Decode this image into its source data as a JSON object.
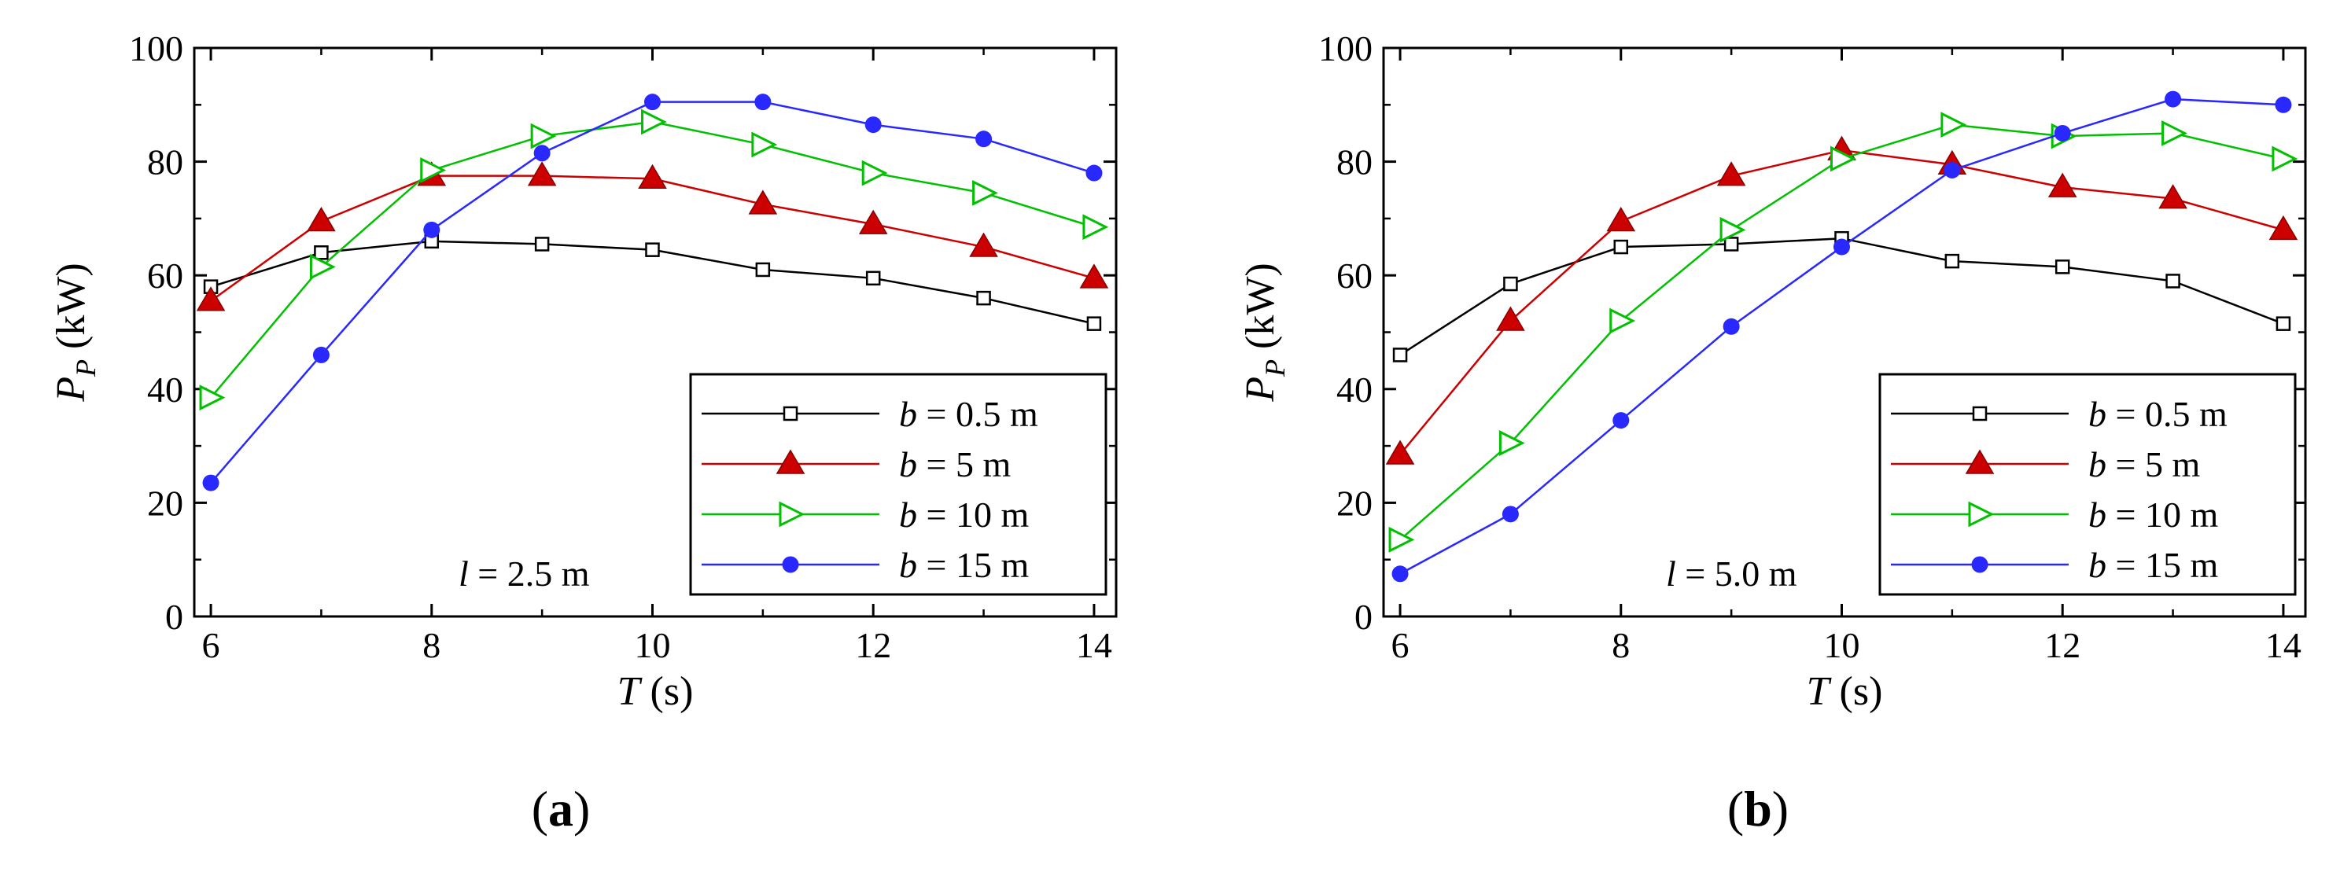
{
  "chart_data": [
    {
      "type": "line",
      "panel_label": "a",
      "annotation": {
        "symbol": "l",
        "text": " = 2.5 m"
      },
      "ylabel": {
        "main": "P",
        "sub": "P",
        "unit": " (kW)"
      },
      "xlabel": {
        "main": "T",
        "unit": " (s)"
      },
      "xlim": [
        5.85,
        14.2
      ],
      "ylim": [
        0,
        100
      ],
      "xticks": [
        6,
        8,
        10,
        12,
        14
      ],
      "xtick_labels": [
        "6",
        "8",
        "10",
        "12",
        "14"
      ],
      "yticks": [
        0,
        20,
        40,
        60,
        80,
        100
      ],
      "ytick_labels": [
        "0",
        "20",
        "40",
        "60",
        "80",
        "100"
      ],
      "legend_position": "lower-right",
      "x": [
        6,
        7,
        8,
        9,
        10,
        11,
        12,
        13,
        14
      ],
      "series": [
        {
          "name": "b = 0.5 m",
          "symbol": "b",
          "label": " = 0.5 m",
          "marker": "square-open",
          "color": "#000000",
          "values": [
            58,
            64,
            66,
            65.5,
            64.5,
            61,
            59.5,
            56,
            51.5
          ]
        },
        {
          "name": "b = 5 m",
          "symbol": "b",
          "label": " = 5 m",
          "marker": "triangle-up-filled",
          "color": "#cc0000",
          "values": [
            55.5,
            69.5,
            77.5,
            77.5,
            77,
            72.5,
            69,
            65,
            59.5
          ]
        },
        {
          "name": "b = 10 m",
          "symbol": "b",
          "label": " = 10 m",
          "marker": "triangle-right-open",
          "color": "#00c000",
          "values": [
            38.5,
            61.5,
            78.5,
            84.5,
            87,
            83,
            78,
            74.5,
            68.5
          ]
        },
        {
          "name": "b = 15 m",
          "symbol": "b",
          "label": " = 15 m",
          "marker": "circle-filled",
          "color": "#2828ff",
          "values": [
            23.5,
            46,
            68,
            81.5,
            90.5,
            90.5,
            86.5,
            84,
            78
          ]
        }
      ]
    },
    {
      "type": "line",
      "panel_label": "b",
      "annotation": {
        "symbol": "l",
        "text": " = 5.0 m"
      },
      "ylabel": {
        "main": "P",
        "sub": "P",
        "unit": " (kW)"
      },
      "xlabel": {
        "main": "T",
        "unit": " (s)"
      },
      "xlim": [
        5.85,
        14.2
      ],
      "ylim": [
        0,
        100
      ],
      "xticks": [
        6,
        8,
        10,
        12,
        14
      ],
      "xtick_labels": [
        "6",
        "8",
        "10",
        "12",
        "14"
      ],
      "yticks": [
        0,
        20,
        40,
        60,
        80,
        100
      ],
      "ytick_labels": [
        "0",
        "20",
        "40",
        "60",
        "80",
        "100"
      ],
      "legend_position": "lower-right",
      "x": [
        6,
        7,
        8,
        9,
        10,
        11,
        12,
        13,
        14
      ],
      "series": [
        {
          "name": "b = 0.5 m",
          "symbol": "b",
          "label": " = 0.5 m",
          "marker": "square-open",
          "color": "#000000",
          "values": [
            46,
            58.5,
            65,
            65.5,
            66.5,
            62.5,
            61.5,
            59,
            51.5
          ]
        },
        {
          "name": "b = 5 m",
          "symbol": "b",
          "label": " = 5 m",
          "marker": "triangle-up-filled",
          "color": "#cc0000",
          "values": [
            28.5,
            52,
            69.5,
            77.5,
            82,
            79.5,
            75.5,
            73.5,
            68
          ]
        },
        {
          "name": "b = 10 m",
          "symbol": "b",
          "label": " = 10 m",
          "marker": "triangle-right-open",
          "color": "#00c000",
          "values": [
            13.5,
            30.5,
            52,
            68,
            80.5,
            86.5,
            84.5,
            85,
            80.5
          ]
        },
        {
          "name": "b = 15 m",
          "symbol": "b",
          "label": " = 15 m",
          "marker": "circle-filled",
          "color": "#2828ff",
          "values": [
            7.5,
            18,
            34.5,
            51,
            65,
            78.5,
            85,
            91,
            90
          ]
        }
      ]
    }
  ]
}
